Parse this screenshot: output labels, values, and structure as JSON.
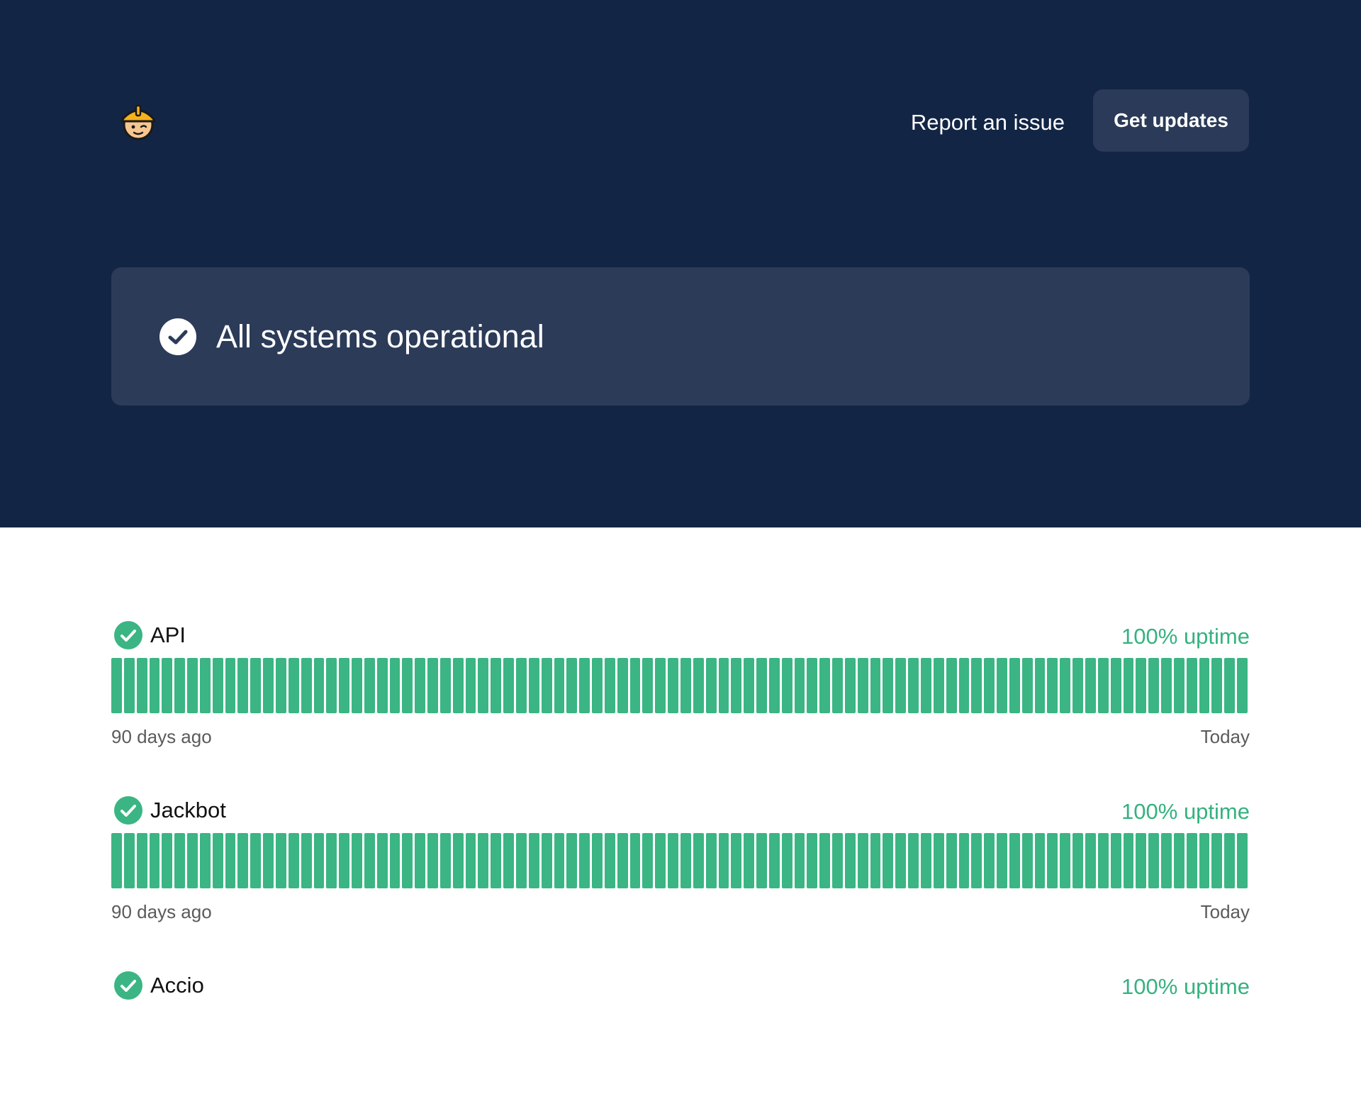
{
  "header": {
    "logo_icon": "construction-worker-icon",
    "report_link": "Report an issue",
    "updates_button": "Get updates"
  },
  "status": {
    "icon": "check-circle-icon",
    "text": "All systems operational"
  },
  "colors": {
    "hero_background": "#122545",
    "banner_background": "#2b3b58",
    "operational_green": "#3ab583",
    "uptime_text": "#35b27f"
  },
  "components": [
    {
      "name": "API",
      "status_icon": "check-circle-icon",
      "uptime": "100% uptime",
      "range_start": "90 days ago",
      "range_end": "Today",
      "days_operational": 90
    },
    {
      "name": "Jackbot",
      "status_icon": "check-circle-icon",
      "uptime": "100% uptime",
      "range_start": "90 days ago",
      "range_end": "Today",
      "days_operational": 90
    },
    {
      "name": "Accio",
      "status_icon": "check-circle-icon",
      "uptime": "100% uptime"
    }
  ]
}
